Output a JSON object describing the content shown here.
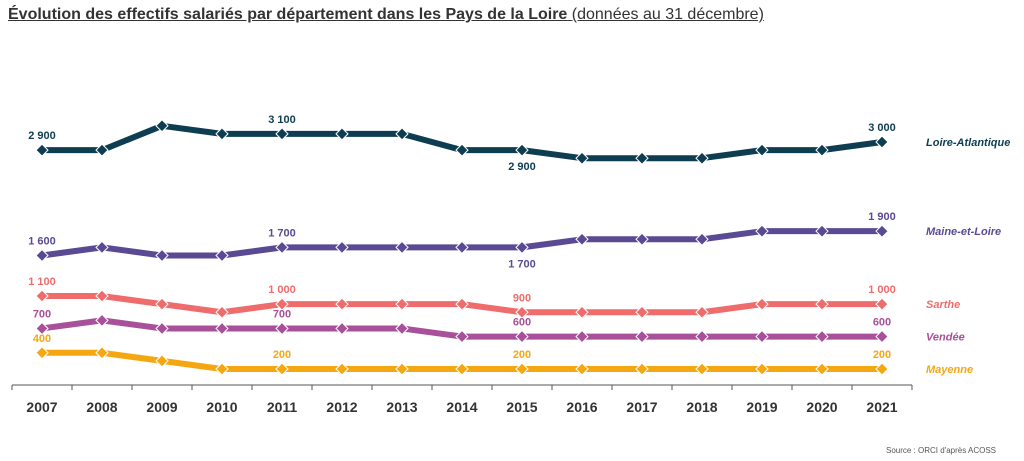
{
  "header": {
    "title_main": "Évolution des effectifs salariés par département dans les Pays de la Loire",
    "title_sub": "(données au 31 décembre)"
  },
  "footer": {
    "source": "Source : ORCI d'après ACOSS"
  },
  "chart_data": {
    "type": "line",
    "title": "Évolution des effectifs salariés par département dans les Pays de la Loire",
    "subtitle": "(données au 31 décembre)",
    "xlabel": "",
    "ylabel": "",
    "x": [
      "2007",
      "2008",
      "2009",
      "2010",
      "2011",
      "2012",
      "2013",
      "2014",
      "2015",
      "2016",
      "2017",
      "2018",
      "2019",
      "2020",
      "2021"
    ],
    "ylim": [
      0,
      3600
    ],
    "grid": false,
    "legend": "inline-right",
    "series": [
      {
        "name": "Loire-Atlantique",
        "color": "#0e3d52",
        "values": [
          2900,
          2900,
          3200,
          3100,
          3100,
          3100,
          3100,
          2900,
          2900,
          2800,
          2800,
          2800,
          2900,
          2900,
          3000
        ],
        "labels": [
          {
            "index": 0,
            "text": "2 900",
            "pos": "above"
          },
          {
            "index": 4,
            "text": "3 100",
            "pos": "above"
          },
          {
            "index": 8,
            "text": "2 900",
            "pos": "below"
          },
          {
            "index": 14,
            "text": "3 000",
            "pos": "above"
          }
        ]
      },
      {
        "name": "Maine-et-Loire",
        "color": "#5a4a94",
        "values": [
          1600,
          1700,
          1600,
          1600,
          1700,
          1700,
          1700,
          1700,
          1700,
          1800,
          1800,
          1800,
          1900,
          1900,
          1900
        ],
        "labels": [
          {
            "index": 0,
            "text": "1 600",
            "pos": "above"
          },
          {
            "index": 4,
            "text": "1 700",
            "pos": "above"
          },
          {
            "index": 8,
            "text": "1 700",
            "pos": "below"
          },
          {
            "index": 14,
            "text": "1 900",
            "pos": "above"
          }
        ]
      },
      {
        "name": "Sarthe",
        "color": "#ee6c6c",
        "values": [
          1100,
          1100,
          1000,
          900,
          1000,
          1000,
          1000,
          1000,
          900,
          900,
          900,
          900,
          1000,
          1000,
          1000
        ],
        "labels": [
          {
            "index": 0,
            "text": "1 100",
            "pos": "above"
          },
          {
            "index": 4,
            "text": "1 000",
            "pos": "above"
          },
          {
            "index": 8,
            "text": "900",
            "pos": "above"
          },
          {
            "index": 14,
            "text": "1 000",
            "pos": "above"
          }
        ]
      },
      {
        "name": "Vendée",
        "color": "#a8509a",
        "values": [
          700,
          800,
          700,
          700,
          700,
          700,
          700,
          600,
          600,
          600,
          600,
          600,
          600,
          600,
          600
        ],
        "labels": [
          {
            "index": 0,
            "text": "700",
            "pos": "above"
          },
          {
            "index": 4,
            "text": "700",
            "pos": "above"
          },
          {
            "index": 8,
            "text": "600",
            "pos": "above"
          },
          {
            "index": 14,
            "text": "600",
            "pos": "above"
          }
        ]
      },
      {
        "name": "Mayenne",
        "color": "#f5a712",
        "values": [
          400,
          400,
          300,
          200,
          200,
          200,
          200,
          200,
          200,
          200,
          200,
          200,
          200,
          200,
          200
        ],
        "labels": [
          {
            "index": 0,
            "text": "400",
            "pos": "above"
          },
          {
            "index": 4,
            "text": "200",
            "pos": "above"
          },
          {
            "index": 8,
            "text": "200",
            "pos": "above"
          },
          {
            "index": 14,
            "text": "200",
            "pos": "above"
          }
        ]
      }
    ]
  }
}
